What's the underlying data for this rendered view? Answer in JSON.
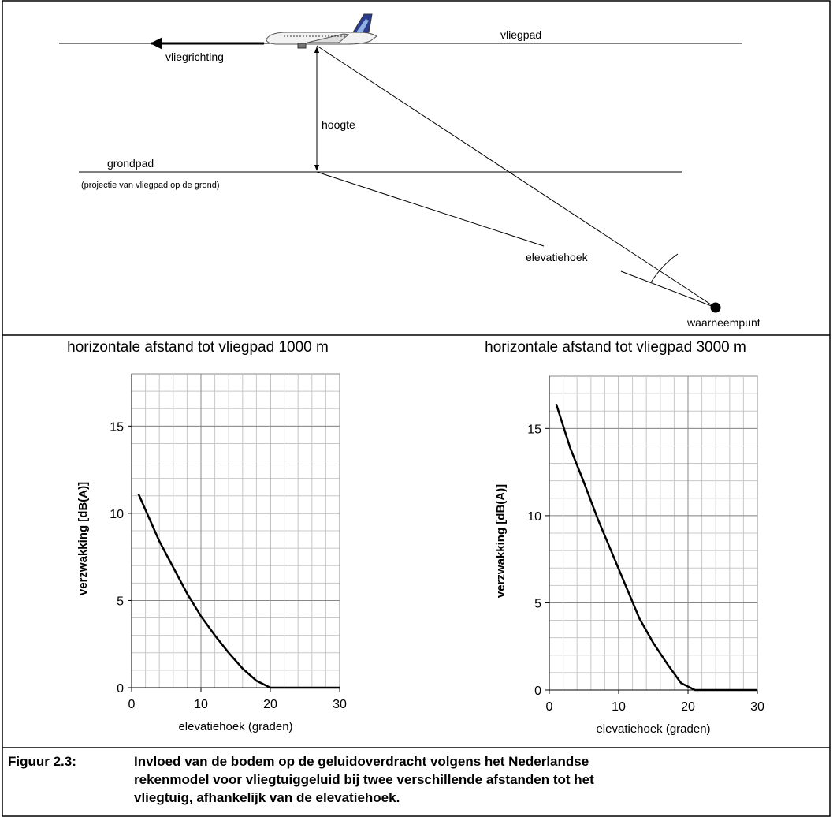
{
  "diagram": {
    "flight_path": "vliegpad",
    "direction": "vliegrichting",
    "height": "hoogte",
    "ground_path": "grondpad",
    "ground_path_note": "(projectie van vliegpad op de grond)",
    "elevation_angle": "elevatiehoek",
    "observer": "waarneempunt"
  },
  "chart_data": [
    {
      "type": "line",
      "title": "horizontale afstand tot vliegpad 1000 m",
      "x_label": "elevatiehoek (graden)",
      "y_label": "verzwakking [dB(A)]",
      "x": [
        1,
        2,
        4,
        6,
        8,
        10,
        12,
        14,
        16,
        18,
        20,
        25,
        30
      ],
      "values": [
        11.1,
        10.2,
        8.4,
        6.9,
        5.4,
        4.1,
        3.0,
        2.0,
        1.1,
        0.4,
        0,
        0,
        0
      ],
      "color": "#000000",
      "xlim": [
        0,
        30
      ],
      "xticks": [
        0,
        10,
        20,
        30
      ],
      "ylim": [
        0,
        18
      ],
      "yticks": [
        0,
        5,
        10,
        15
      ],
      "grid": true
    },
    {
      "type": "line",
      "title": "horizontale afstand tot vliegpad 3000 m",
      "x_label": "elevatiehoek (graden)",
      "y_label": "verzwakking [dB(A)]",
      "x": [
        1,
        3,
        5,
        7,
        9,
        11,
        13,
        15,
        17,
        19,
        21,
        25,
        30
      ],
      "values": [
        16.4,
        13.9,
        11.9,
        9.8,
        7.9,
        6.0,
        4.1,
        2.7,
        1.5,
        0.4,
        0,
        0,
        0
      ],
      "color": "#000000",
      "xlim": [
        0,
        30
      ],
      "xticks": [
        0,
        10,
        20,
        30
      ],
      "ylim": [
        0,
        18
      ],
      "yticks": [
        0,
        5,
        10,
        15
      ],
      "grid": true
    }
  ],
  "caption": {
    "label": "Figuur 2.3:",
    "lines": [
      "Invloed van de bodem op de geluidoverdracht volgens het Nederlandse",
      "rekenmodel voor vliegtuiggeluid bij twee verschillende afstanden tot het",
      "vliegtuig, afhankelijk van de elevatiehoek."
    ]
  }
}
